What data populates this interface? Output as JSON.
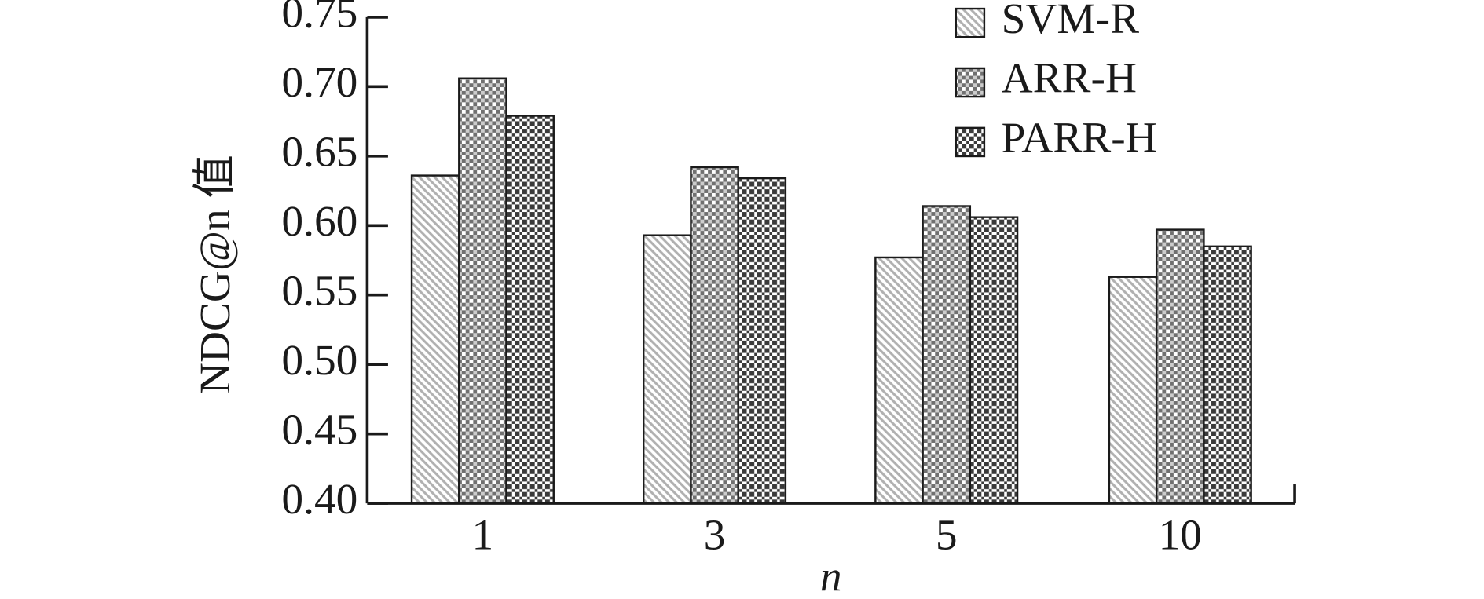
{
  "chart_data": {
    "type": "bar",
    "y_label": "NDCG@n 值",
    "x_label": "n",
    "categories": [
      "1",
      "3",
      "5",
      "10"
    ],
    "series": [
      {
        "name": "SVM-R",
        "color": "#b0b0b0",
        "values": [
          0.636,
          0.593,
          0.577,
          0.563
        ]
      },
      {
        "name": "ARR-H",
        "color": "#707070",
        "values": [
          0.706,
          0.642,
          0.614,
          0.597
        ]
      },
      {
        "name": "PARR-H",
        "color": "#3a3a3a",
        "values": [
          0.679,
          0.634,
          0.606,
          0.585
        ]
      }
    ],
    "ylim": [
      0.4,
      0.75
    ],
    "yticks": [
      {
        "value": 0.4,
        "label": "0.40"
      },
      0.45,
      {
        "value": 0.5,
        "label": "0.50"
      },
      0.55,
      {
        "value": 0.6,
        "label": "0.60"
      },
      0.65,
      {
        "value": 0.7,
        "label": "0.70"
      },
      0.75
    ],
    "legend": "top-right"
  }
}
